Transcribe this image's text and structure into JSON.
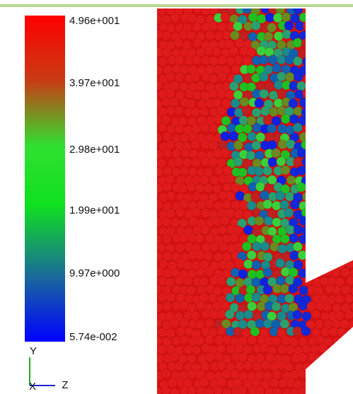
{
  "legend": {
    "labels": [
      "4.96e+001",
      "3.97e+001",
      "2.98e+001",
      "1.99e+001",
      "9.97e+000",
      "5.74e-002"
    ]
  },
  "triad": {
    "y": "Y",
    "x": "X",
    "z": "Z"
  }
}
